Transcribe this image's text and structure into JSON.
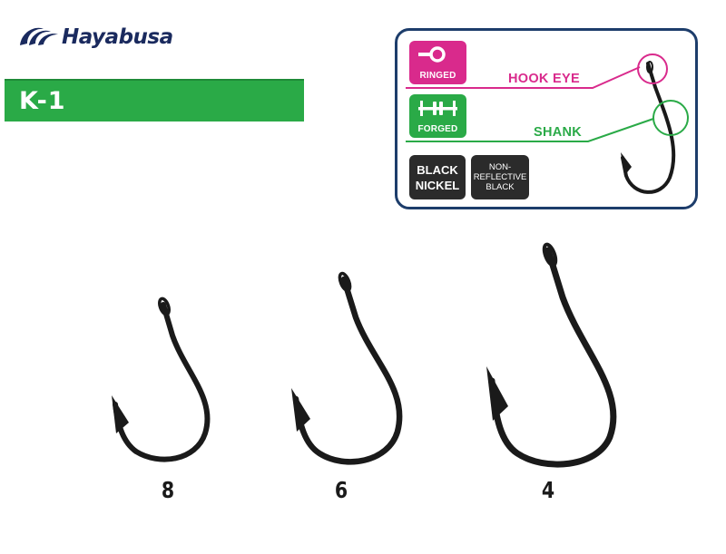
{
  "brand": {
    "name": "Hayabusa",
    "logo_icon": "wave-swirl-logo",
    "color": "#1a2a5e"
  },
  "model": {
    "name": "K-1",
    "bar_color": "#2aaa47"
  },
  "spec_panel": {
    "border_color": "#1d3d6b",
    "badges": {
      "ringed": {
        "label": "RINGED",
        "icon": "ring-eye-icon",
        "color": "#d92a8c"
      },
      "forged": {
        "label": "FORGED",
        "icon": "forged-shank-icon",
        "color": "#2aaa47"
      }
    },
    "finishes": {
      "black_nickel": {
        "label": "BLACK\nNICKEL",
        "color": "#2b2b2b"
      },
      "non_reflective": {
        "label": "NON-\nREFLECTIVE\nBLACK",
        "color": "#2b2b2b"
      }
    },
    "callouts": {
      "hook_eye": "HOOK EYE",
      "shank": "SHANK"
    }
  },
  "hooks": [
    {
      "size": "8"
    },
    {
      "size": "6"
    },
    {
      "size": "4"
    }
  ]
}
